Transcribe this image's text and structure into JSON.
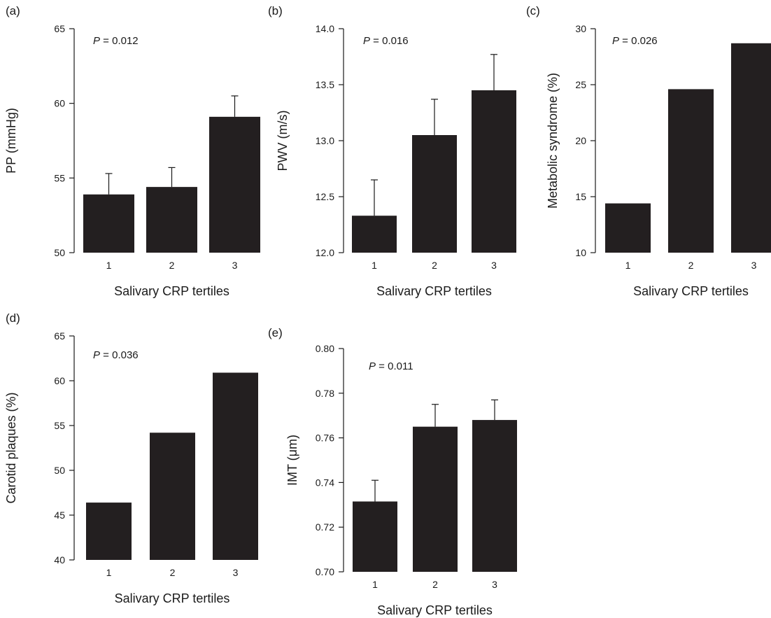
{
  "chart_data": [
    {
      "panel": "(a)",
      "type": "bar",
      "categories": [
        "1",
        "2",
        "3"
      ],
      "values": [
        53.9,
        54.4,
        59.1
      ],
      "error_upper": [
        55.3,
        55.7,
        60.5
      ],
      "p_prefix": "P",
      "p_value": "= 0.012",
      "xlabel": "Salivary CRP tertiles",
      "ylabel": "PP (mmHg)",
      "ylim": [
        50,
        65
      ],
      "yticks": [
        "50",
        "55",
        "60",
        "65"
      ],
      "bar_color": "#231f20"
    },
    {
      "panel": "(b)",
      "type": "bar",
      "categories": [
        "1",
        "2",
        "3"
      ],
      "values": [
        12.33,
        13.05,
        13.45
      ],
      "error_upper": [
        12.65,
        13.37,
        13.77
      ],
      "p_prefix": "P",
      "p_value": "= 0.016",
      "xlabel": "Salivary CRP tertiles",
      "ylabel": "PWV (m/s)",
      "ylim": [
        12.0,
        14.0
      ],
      "yticks": [
        "12.0",
        "12.5",
        "13.0",
        "13.5",
        "14.0"
      ],
      "bar_color": "#231f20"
    },
    {
      "panel": "(c)",
      "type": "bar",
      "categories": [
        "1",
        "2",
        "3"
      ],
      "values": [
        14.4,
        24.6,
        28.7
      ],
      "error_upper": [],
      "p_prefix": "P",
      "p_value": "= 0.026",
      "xlabel": "Salivary CRP tertiles",
      "ylabel": "Metabolic syndrome (%)",
      "ylim": [
        10,
        30
      ],
      "yticks": [
        "10",
        "15",
        "20",
        "25",
        "30"
      ],
      "bar_color": "#231f20"
    },
    {
      "panel": "(d)",
      "type": "bar",
      "categories": [
        "1",
        "2",
        "3"
      ],
      "values": [
        46.4,
        54.2,
        60.9
      ],
      "error_upper": [],
      "p_prefix": "P",
      "p_value": "= 0.036",
      "xlabel": "Salivary CRP tertiles",
      "ylabel": "Carotid plaques (%)",
      "ylim": [
        40,
        65
      ],
      "yticks": [
        "40",
        "45",
        "50",
        "55",
        "60",
        "65"
      ],
      "bar_color": "#231f20"
    },
    {
      "panel": "(e)",
      "type": "bar",
      "categories": [
        "1",
        "2",
        "3"
      ],
      "values": [
        0.7315,
        0.765,
        0.768
      ],
      "error_upper": [
        0.741,
        0.775,
        0.777
      ],
      "p_prefix": "P",
      "p_value": "= 0.011",
      "xlabel": "Salivary CRP tertiles",
      "ylabel": "IMT (μm)",
      "ylim": [
        0.7,
        0.8
      ],
      "yticks": [
        "0.70",
        "0.72",
        "0.74",
        "0.76",
        "0.78",
        "0.80"
      ],
      "bar_color": "#231f20"
    }
  ]
}
